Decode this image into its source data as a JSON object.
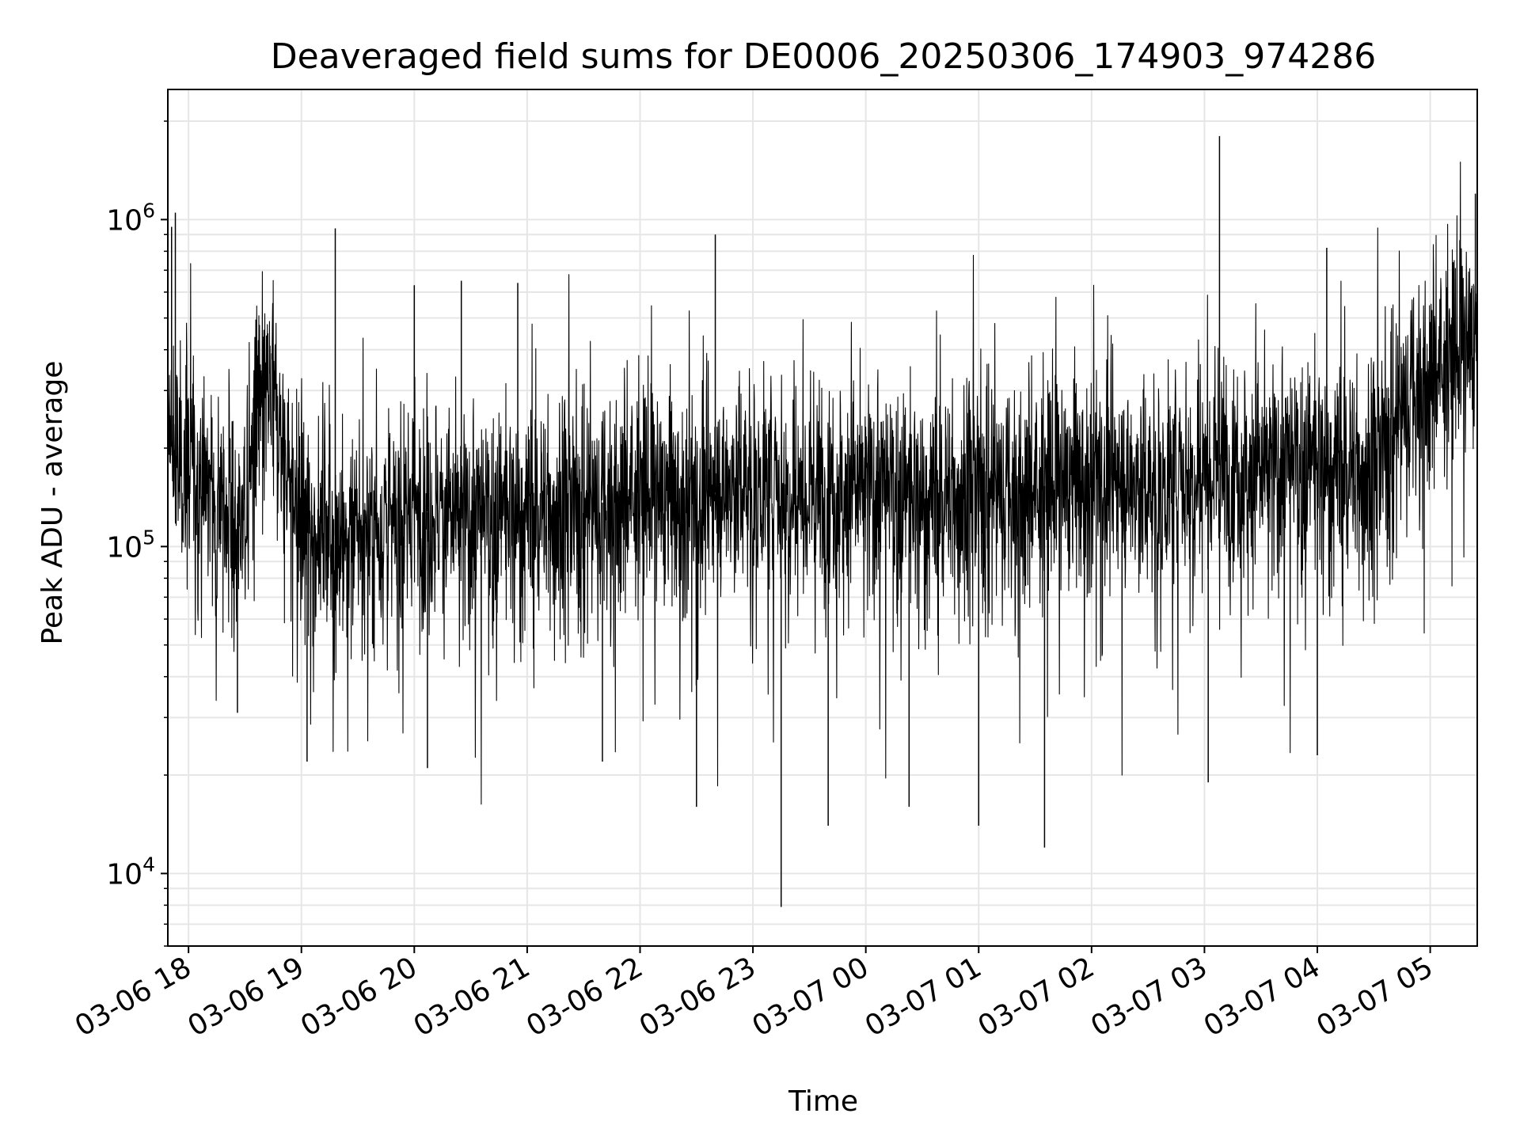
{
  "chart_data": {
    "type": "line",
    "title": "Deaveraged field sums for DE0006_20250306_174903_974286",
    "xlabel": "Time",
    "ylabel": "Peak ADU - average",
    "yscale": "log",
    "ylim": [
      6000,
      2500000
    ],
    "xlim": [
      "2025-03-06 17:49",
      "2025-03-07 05:25"
    ],
    "grid": true,
    "legend": "none",
    "line_color": "#000000",
    "grid_color": "#e6e6e6",
    "x_ticks": [
      {
        "value": "2025-03-06 18:00",
        "label": "03-06 18"
      },
      {
        "value": "2025-03-06 19:00",
        "label": "03-06 19"
      },
      {
        "value": "2025-03-06 20:00",
        "label": "03-06 20"
      },
      {
        "value": "2025-03-06 21:00",
        "label": "03-06 21"
      },
      {
        "value": "2025-03-06 22:00",
        "label": "03-06 22"
      },
      {
        "value": "2025-03-06 23:00",
        "label": "03-06 23"
      },
      {
        "value": "2025-03-07 00:00",
        "label": "03-07 00"
      },
      {
        "value": "2025-03-07 01:00",
        "label": "03-07 01"
      },
      {
        "value": "2025-03-07 02:00",
        "label": "03-07 02"
      },
      {
        "value": "2025-03-07 03:00",
        "label": "03-07 03"
      },
      {
        "value": "2025-03-07 04:00",
        "label": "03-07 04"
      },
      {
        "value": "2025-03-07 05:00",
        "label": "03-07 05"
      }
    ],
    "y_ticks": [
      {
        "value": 10000,
        "base": "10",
        "exp": "4"
      },
      {
        "value": 100000,
        "base": "10",
        "exp": "5"
      },
      {
        "value": 1000000,
        "base": "10",
        "exp": "6"
      }
    ],
    "series": [
      {
        "x": [
          "2025-03-06 17:49",
          "2025-03-06 17:55",
          "2025-03-06 18:00",
          "2025-03-06 18:10",
          "2025-03-06 18:20",
          "2025-03-06 18:30",
          "2025-03-06 18:35",
          "2025-03-06 18:45",
          "2025-03-06 19:00",
          "2025-03-06 19:15",
          "2025-03-06 19:30",
          "2025-03-06 20:00",
          "2025-03-06 20:30",
          "2025-03-06 21:00",
          "2025-03-06 21:30",
          "2025-03-06 22:00",
          "2025-03-06 22:30",
          "2025-03-06 23:00",
          "2025-03-06 23:30",
          "2025-03-07 00:00",
          "2025-03-07 00:30",
          "2025-03-07 01:00",
          "2025-03-07 01:30",
          "2025-03-07 02:00",
          "2025-03-07 02:30",
          "2025-03-07 03:00",
          "2025-03-07 03:30",
          "2025-03-07 04:00",
          "2025-03-07 04:30",
          "2025-03-07 04:50",
          "2025-03-07 05:10",
          "2025-03-07 05:25"
        ],
        "y": [
          220000,
          170000,
          180000,
          150000,
          130000,
          110000,
          260000,
          280000,
          120000,
          110000,
          100000,
          130000,
          120000,
          130000,
          130000,
          150000,
          140000,
          160000,
          150000,
          150000,
          140000,
          150000,
          150000,
          170000,
          150000,
          180000,
          170000,
          180000,
          170000,
          300000,
          380000,
          450000
        ]
      }
    ],
    "spikes_up": [
      {
        "x": "2025-03-06 17:51",
        "y": 950000
      },
      {
        "x": "2025-03-06 17:53",
        "y": 1050000
      },
      {
        "x": "2025-03-06 19:18",
        "y": 940000
      },
      {
        "x": "2025-03-06 20:00",
        "y": 630000
      },
      {
        "x": "2025-03-06 20:25",
        "y": 650000
      },
      {
        "x": "2025-03-06 20:55",
        "y": 640000
      },
      {
        "x": "2025-03-06 22:40",
        "y": 900000
      },
      {
        "x": "2025-03-07 03:08",
        "y": 1800000
      },
      {
        "x": "2025-03-07 04:05",
        "y": 820000
      },
      {
        "x": "2025-03-07 05:24",
        "y": 1200000
      }
    ],
    "spikes_down": [
      {
        "x": "2025-03-06 18:26",
        "y": 31000
      },
      {
        "x": "2025-03-06 19:03",
        "y": 22000
      },
      {
        "x": "2025-03-06 20:07",
        "y": 21000
      },
      {
        "x": "2025-03-06 21:40",
        "y": 22000
      },
      {
        "x": "2025-03-06 22:30",
        "y": 16000
      },
      {
        "x": "2025-03-06 23:15",
        "y": 7900
      },
      {
        "x": "2025-03-06 23:40",
        "y": 14000
      },
      {
        "x": "2025-03-07 00:23",
        "y": 16000
      },
      {
        "x": "2025-03-07 01:00",
        "y": 14000
      },
      {
        "x": "2025-03-07 01:35",
        "y": 12000
      },
      {
        "x": "2025-03-07 03:02",
        "y": 19000
      },
      {
        "x": "2025-03-07 04:00",
        "y": 23000
      }
    ]
  }
}
